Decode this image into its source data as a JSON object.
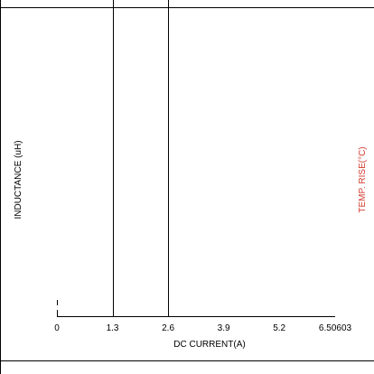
{
  "chart_data": {
    "type": "line",
    "xlabel": "DC CURRENT(A)",
    "ylabel": "INDUCTANCE (uH)",
    "y2label": "TEMP. RISE(°C)",
    "xlim": [
      0,
      6.50603
    ],
    "x_ticks": [
      "0",
      "1.3",
      "2.6",
      "3.9",
      "5.2",
      "6.50603"
    ],
    "x_tick_values": [
      0,
      1.3,
      2.6,
      3.9,
      5.2,
      6.50603
    ],
    "vertical_lines_x": [
      1.3,
      2.6
    ],
    "grid": false,
    "colors": {
      "axes": "#000000",
      "y2label": "#d23c2f"
    }
  }
}
